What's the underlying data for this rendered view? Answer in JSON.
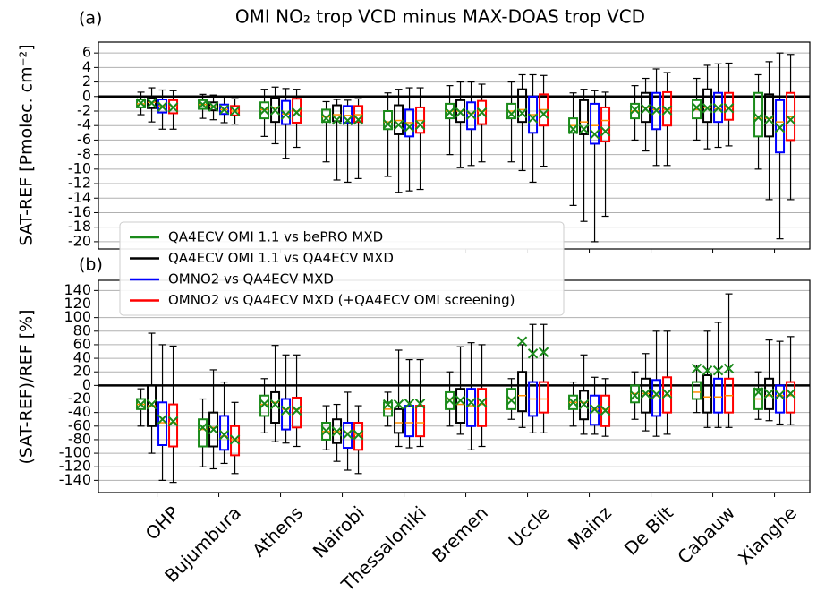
{
  "chart_data": [
    {
      "type": "box",
      "panel_label": "(a)",
      "title": "OMI NO₂ trop VCD minus MAX-DOAS trop VCD",
      "y_label": "SAT-REF [Pmolec. cm⁻²]",
      "categories": [
        "OHP",
        "Bujumbura",
        "Athens",
        "Nairobi",
        "Thessaloniki",
        "Bremen",
        "Uccle",
        "Mainz",
        "De Bilt",
        "Cabauw",
        "Xianghe"
      ],
      "ylim": [
        -21,
        7.5
      ],
      "yticks": [
        -20,
        -18,
        -16,
        -14,
        -12,
        -10,
        -8,
        -6,
        -4,
        -2,
        0,
        2,
        4,
        6
      ],
      "grid": true,
      "zero_line": true,
      "legend": "lower left",
      "series": [
        {
          "name": "QA4ECV OMI 1.1 vs bePRO MXD",
          "color": "#1a8a1a",
          "values": [
            {
              "min": -2.5,
              "q1": -1.5,
              "median": -1,
              "q3": -0.4,
              "max": 0.6,
              "mean": -0.9
            },
            {
              "min": -3,
              "q1": -1.7,
              "median": -1.1,
              "q3": -0.5,
              "max": 0.3,
              "mean": -1.1
            },
            {
              "min": -5.5,
              "q1": -3,
              "median": -1.8,
              "q3": -0.8,
              "max": 1,
              "mean": -1.9
            },
            {
              "min": -9,
              "q1": -3.5,
              "median": -2.8,
              "q3": -1.8,
              "max": -0.7,
              "mean": -3
            },
            {
              "min": -11,
              "q1": -4.5,
              "median": -3.5,
              "q3": -2,
              "max": 0.5,
              "mean": -3.8
            },
            {
              "min": -8,
              "q1": -3,
              "median": -2,
              "q3": -1,
              "max": 1.5,
              "mean": -2.2
            },
            {
              "min": -9,
              "q1": -3,
              "median": -2,
              "q3": -1,
              "max": 2,
              "mean": -2.4
            },
            {
              "min": -15,
              "q1": -5,
              "median": -4,
              "q3": -3,
              "max": 0.5,
              "mean": -4.5
            },
            {
              "min": -6,
              "q1": -3,
              "median": -2,
              "q3": -1,
              "max": 1.5,
              "mean": -1.8
            },
            {
              "min": -6,
              "q1": -3,
              "median": -1.8,
              "q3": -0.5,
              "max": 2.5,
              "mean": -1.5
            },
            {
              "min": -10,
              "q1": -5.5,
              "median": -3,
              "q3": 0.5,
              "max": 3,
              "mean": -2.9
            }
          ]
        },
        {
          "name": "QA4ECV OMI 1.1 vs QA4ECV MXD",
          "color": "#000000",
          "values": [
            {
              "min": -3.5,
              "q1": -1.6,
              "median": -0.8,
              "q3": -0.2,
              "max": 1.2,
              "mean": -0.9
            },
            {
              "min": -3.2,
              "q1": -1.9,
              "median": -1.4,
              "q3": -0.8,
              "max": 0.2,
              "mean": -1.4
            },
            {
              "min": -6.5,
              "q1": -3.5,
              "median": -1.5,
              "q3": -0.2,
              "max": 1.3,
              "mean": -1.9
            },
            {
              "min": -11.5,
              "q1": -3.4,
              "median": -2.5,
              "q3": -1.2,
              "max": -0.4,
              "mean": -3.2
            },
            {
              "min": -13.2,
              "q1": -5.2,
              "median": -3.3,
              "q3": -1.2,
              "max": 1,
              "mean": -3.9
            },
            {
              "min": -9.8,
              "q1": -3.5,
              "median": -2,
              "q3": -0.5,
              "max": 2,
              "mean": -2.2
            },
            {
              "min": -10.2,
              "q1": -3.5,
              "median": -1.8,
              "q3": 1,
              "max": 3,
              "mean": -2.3
            },
            {
              "min": -17.2,
              "q1": -5.2,
              "median": -3.5,
              "q3": -0.5,
              "max": 1,
              "mean": -4.5
            },
            {
              "min": -7.5,
              "q1": -3.5,
              "median": -1.5,
              "q3": 0.5,
              "max": 2.5,
              "mean": -1.7
            },
            {
              "min": -7.2,
              "q1": -3.5,
              "median": -1.5,
              "q3": 1,
              "max": 4.3,
              "mean": -1.6
            },
            {
              "min": -14.2,
              "q1": -5.5,
              "median": -3,
              "q3": 0.3,
              "max": 4.8,
              "mean": -3.2
            }
          ]
        },
        {
          "name": "OMNO2 vs QA4ECV MXD",
          "color": "#0000ff",
          "values": [
            {
              "min": -4.5,
              "q1": -2.2,
              "median": -1.3,
              "q3": -0.4,
              "max": 0.9,
              "mean": -1.4
            },
            {
              "min": -3.6,
              "q1": -2.4,
              "median": -1.8,
              "q3": -1.1,
              "max": 0,
              "mean": -1.8
            },
            {
              "min": -8.5,
              "q1": -3.8,
              "median": -2.4,
              "q3": -0.6,
              "max": 1.1,
              "mean": -2.5
            },
            {
              "min": -11.8,
              "q1": -3.6,
              "median": -2.6,
              "q3": -1.3,
              "max": -0.5,
              "mean": -3.3
            },
            {
              "min": -13,
              "q1": -5.5,
              "median": -3.6,
              "q3": -1.8,
              "max": 1.2,
              "mean": -4.2
            },
            {
              "min": -9.5,
              "q1": -4.5,
              "median": -2.3,
              "q3": -0.8,
              "max": 2,
              "mean": -2.5
            },
            {
              "min": -11.8,
              "q1": -5,
              "median": -2.5,
              "q3": 0,
              "max": 3,
              "mean": -3
            },
            {
              "min": -20,
              "q1": -6.5,
              "median": -4,
              "q3": -1,
              "max": 0.8,
              "mean": -5.2
            },
            {
              "min": -9.5,
              "q1": -4.5,
              "median": -1.8,
              "q3": 0.5,
              "max": 3.8,
              "mean": -1.9
            },
            {
              "min": -7,
              "q1": -3.5,
              "median": -1.7,
              "q3": 0.5,
              "max": 4.5,
              "mean": -1.6
            },
            {
              "min": -19.6,
              "q1": -7.7,
              "median": -3.5,
              "q3": -0.5,
              "max": 6,
              "mean": -4.3
            }
          ]
        },
        {
          "name": "OMNO2 vs QA4ECV MXD (+QA4ECV OMI screening)",
          "color": "#ff0000",
          "values": [
            {
              "min": -4.5,
              "q1": -2.3,
              "median": -1.4,
              "q3": -0.5,
              "max": 0.8,
              "mean": -1.5
            },
            {
              "min": -3.8,
              "q1": -2.6,
              "median": -2,
              "q3": -1.3,
              "max": -0.3,
              "mean": -2
            },
            {
              "min": -7,
              "q1": -3.6,
              "median": -2,
              "q3": -0.3,
              "max": 1,
              "mean": -2.2
            },
            {
              "min": -11.3,
              "q1": -3.5,
              "median": -2.5,
              "q3": -1.3,
              "max": -0.3,
              "mean": -3.2
            },
            {
              "min": -12.8,
              "q1": -5,
              "median": -3.3,
              "q3": -1.5,
              "max": 1.2,
              "mean": -3.9
            },
            {
              "min": -9,
              "q1": -3.8,
              "median": -2,
              "q3": -0.6,
              "max": 1.7,
              "mean": -2.2
            },
            {
              "min": -9.6,
              "q1": -4,
              "median": -1.8,
              "q3": 0.3,
              "max": 2.9,
              "mean": -2.4
            },
            {
              "min": -16.5,
              "q1": -6.2,
              "median": -3.3,
              "q3": -1.5,
              "max": 0.6,
              "mean": -4.8
            },
            {
              "min": -9.5,
              "q1": -4,
              "median": -1.8,
              "q3": 0.6,
              "max": 3.3,
              "mean": -1.9
            },
            {
              "min": -6.8,
              "q1": -3.2,
              "median": -1.5,
              "q3": 0.5,
              "max": 4.6,
              "mean": -1.6
            },
            {
              "min": -14.2,
              "q1": -6,
              "median": -2.8,
              "q3": 0.5,
              "max": 5.8,
              "mean": -3.2
            }
          ]
        }
      ]
    },
    {
      "type": "box",
      "panel_label": "(b)",
      "y_label": "(SAT-REF)/REF [%]",
      "ylim": [
        -158,
        155
      ],
      "yticks": [
        -140,
        -120,
        -100,
        -80,
        -60,
        -40,
        -20,
        0,
        20,
        40,
        60,
        80,
        100,
        120,
        140
      ],
      "grid": true,
      "zero_line": true,
      "series": [
        {
          "color": "#1a8a1a",
          "values": [
            {
              "min": -60,
              "q1": -35,
              "median": -28,
              "q3": -20,
              "max": -5,
              "mean": -28
            },
            {
              "min": -120,
              "q1": -90,
              "median": -65,
              "q3": -50,
              "max": -20,
              "mean": -62
            },
            {
              "min": -70,
              "q1": -45,
              "median": -28,
              "q3": -15,
              "max": 10,
              "mean": -27
            },
            {
              "min": -95,
              "q1": -80,
              "median": -68,
              "q3": -55,
              "max": -30,
              "mean": -67
            },
            {
              "min": -60,
              "q1": -45,
              "median": -35,
              "q3": -25,
              "max": -10,
              "mean": -28
            },
            {
              "min": -60,
              "q1": -35,
              "median": -20,
              "q3": -10,
              "max": 20,
              "mean": -22
            },
            {
              "min": -50,
              "q1": -35,
              "median": -20,
              "q3": -5,
              "max": 10,
              "mean": -22
            },
            {
              "min": -60,
              "q1": -35,
              "median": -25,
              "q3": -15,
              "max": 5,
              "mean": -25
            },
            {
              "min": -50,
              "q1": -25,
              "median": -12,
              "q3": 0,
              "max": 20,
              "mean": -15
            },
            {
              "min": -40,
              "q1": -20,
              "median": -10,
              "q3": 5,
              "max": 30,
              "mean": 25
            },
            {
              "min": -50,
              "q1": -35,
              "median": -20,
              "q3": -5,
              "max": 20,
              "mean": -10
            }
          ]
        },
        {
          "color": "#000000",
          "values": [
            {
              "min": -100,
              "q1": -60,
              "median": -30,
              "q3": 0,
              "max": 77,
              "mean": -28
            },
            {
              "min": -123,
              "q1": -90,
              "median": -62,
              "q3": -40,
              "max": 23,
              "mean": -65
            },
            {
              "min": -83,
              "q1": -55,
              "median": -25,
              "q3": -10,
              "max": 59,
              "mean": -28
            },
            {
              "min": -112,
              "q1": -85,
              "median": -68,
              "q3": -50,
              "max": -28,
              "mean": -68
            },
            {
              "min": -90,
              "q1": -70,
              "median": -55,
              "q3": -35,
              "max": 52,
              "mean": -28
            },
            {
              "min": -72,
              "q1": -55,
              "median": -28,
              "q3": -5,
              "max": 57,
              "mean": -22
            },
            {
              "min": -62,
              "q1": -38,
              "median": -15,
              "q3": 20,
              "max": 60,
              "mean": 65
            },
            {
              "min": -72,
              "q1": -50,
              "median": -25,
              "q3": -8,
              "max": 45,
              "mean": -28
            },
            {
              "min": -67,
              "q1": -40,
              "median": -12,
              "q3": 10,
              "max": 47,
              "mean": -12
            },
            {
              "min": -62,
              "q1": -40,
              "median": -17,
              "q3": 15,
              "max": 80,
              "mean": 22
            },
            {
              "min": -52,
              "q1": -35,
              "median": -15,
              "q3": 10,
              "max": 67,
              "mean": -12
            }
          ]
        },
        {
          "color": "#0000ff",
          "values": [
            {
              "min": -140,
              "q1": -88,
              "median": -55,
              "q3": -25,
              "max": 60,
              "mean": -50
            },
            {
              "min": -115,
              "q1": -95,
              "median": -75,
              "q3": -45,
              "max": 5,
              "mean": -73
            },
            {
              "min": -85,
              "q1": -65,
              "median": -35,
              "q3": -20,
              "max": 45,
              "mean": -37
            },
            {
              "min": -125,
              "q1": -92,
              "median": -70,
              "q3": -55,
              "max": -10,
              "mean": -72
            },
            {
              "min": -92,
              "q1": -75,
              "median": -55,
              "q3": -30,
              "max": 38,
              "mean": -27
            },
            {
              "min": -95,
              "q1": -60,
              "median": -30,
              "q3": -5,
              "max": 63,
              "mean": -25
            },
            {
              "min": -70,
              "q1": -45,
              "median": -20,
              "q3": 5,
              "max": 90,
              "mean": 47
            },
            {
              "min": -72,
              "q1": -58,
              "median": -35,
              "q3": -15,
              "max": 12,
              "mean": -35
            },
            {
              "min": -75,
              "q1": -45,
              "median": -15,
              "q3": 8,
              "max": 80,
              "mean": -13
            },
            {
              "min": -62,
              "q1": -40,
              "median": -17,
              "q3": 10,
              "max": 93,
              "mean": 22
            },
            {
              "min": -57,
              "q1": -40,
              "median": -15,
              "q3": 0,
              "max": 65,
              "mean": -14
            }
          ]
        },
        {
          "color": "#ff0000",
          "values": [
            {
              "min": -143,
              "q1": -90,
              "median": -55,
              "q3": -28,
              "max": 58,
              "mean": -53
            },
            {
              "min": -130,
              "q1": -103,
              "median": -80,
              "q3": -60,
              "max": -25,
              "mean": -80
            },
            {
              "min": -90,
              "q1": -62,
              "median": -35,
              "q3": -18,
              "max": 45,
              "mean": -37
            },
            {
              "min": -130,
              "q1": -95,
              "median": -72,
              "q3": -55,
              "max": -30,
              "mean": -73
            },
            {
              "min": -90,
              "q1": -75,
              "median": -55,
              "q3": -30,
              "max": 38,
              "mean": -27
            },
            {
              "min": -90,
              "q1": -60,
              "median": -28,
              "q3": -5,
              "max": 60,
              "mean": -25
            },
            {
              "min": -70,
              "q1": -40,
              "median": -20,
              "q3": 5,
              "max": 90,
              "mean": 49
            },
            {
              "min": -75,
              "q1": -60,
              "median": -35,
              "q3": -15,
              "max": 10,
              "mean": -37
            },
            {
              "min": -72,
              "q1": -40,
              "median": -15,
              "q3": 12,
              "max": 80,
              "mean": -12
            },
            {
              "min": -62,
              "q1": -40,
              "median": -15,
              "q3": 10,
              "max": 135,
              "mean": 25
            },
            {
              "min": -58,
              "q1": -40,
              "median": -15,
              "q3": 5,
              "max": 72,
              "mean": -12
            }
          ]
        }
      ]
    }
  ]
}
